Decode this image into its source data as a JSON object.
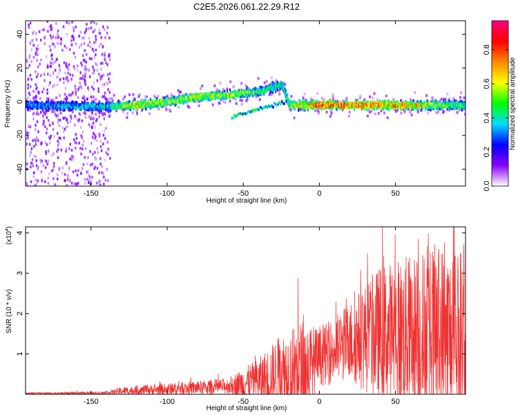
{
  "title": "C2E5.2026.061.22.29.R12",
  "chart_data": [
    {
      "type": "heatmap",
      "panel": "top",
      "xlabel": "Height of straight line (km)",
      "ylabel": "Frequency (Hz)",
      "xlim": [
        -193,
        96
      ],
      "ylim": [
        -50,
        48
      ],
      "xticks": [
        -150,
        -100,
        -50,
        0,
        50
      ],
      "yticks": [
        -40,
        -20,
        0,
        20,
        40
      ],
      "colorbar": {
        "label": "Normalized spectral amplitude",
        "range": [
          0,
          0.97
        ],
        "ticks": [
          "0.0",
          "0.2",
          "0.4",
          "0.6",
          "0.8"
        ],
        "colors": [
          "#ffffff",
          "#8800ff",
          "#0000ff",
          "#00ddff",
          "#00ff00",
          "#ffff00",
          "#ff8800",
          "#ff0000",
          "#ff0080"
        ]
      },
      "ridge": [
        {
          "x": -193,
          "f": -2,
          "amp": 0.35
        },
        {
          "x": -140,
          "f": -3,
          "amp": 0.45
        },
        {
          "x": -120,
          "f": -2,
          "amp": 0.7
        },
        {
          "x": -100,
          "f": 0,
          "amp": 0.6
        },
        {
          "x": -80,
          "f": 3,
          "amp": 0.65
        },
        {
          "x": -60,
          "f": 4,
          "amp": 0.6
        },
        {
          "x": -40,
          "f": 6,
          "amp": 0.55
        },
        {
          "x": -25,
          "f": 10,
          "amp": 0.45
        },
        {
          "x": -20,
          "f": -2,
          "amp": 0.6
        },
        {
          "x": 0,
          "f": -2,
          "amp": 0.9
        },
        {
          "x": 20,
          "f": -2,
          "amp": 0.85
        },
        {
          "x": 50,
          "f": -2,
          "amp": 0.8
        },
        {
          "x": 96,
          "f": -2,
          "amp": 0.5
        }
      ]
    },
    {
      "type": "line",
      "panel": "bottom",
      "xlabel": "Height of straight line (km)",
      "ylabel": "SNR (10 * v/v)",
      "multiplier": "(x10",
      "multiplier_exp": "4",
      "multiplier_close": ")",
      "xlim": [
        -193,
        96
      ],
      "ylim": [
        0,
        4.15
      ],
      "xticks": [
        -150,
        -100,
        -50,
        0,
        50
      ],
      "yticks": [
        1,
        2,
        3,
        4
      ],
      "color": "#ee3333",
      "envelope": [
        {
          "x": -193,
          "base": 0.02,
          "amp": 0.02
        },
        {
          "x": -140,
          "base": 0.03,
          "amp": 0.04
        },
        {
          "x": -130,
          "base": 0.08,
          "amp": 0.1
        },
        {
          "x": -100,
          "base": 0.12,
          "amp": 0.15
        },
        {
          "x": -60,
          "base": 0.2,
          "amp": 0.2
        },
        {
          "x": -40,
          "base": 0.35,
          "amp": 0.55
        },
        {
          "x": -25,
          "base": 0.5,
          "amp": 1.0
        },
        {
          "x": -10,
          "base": 0.6,
          "amp": 1.3
        },
        {
          "x": 0,
          "base": 0.9,
          "amp": 0.7
        },
        {
          "x": 20,
          "base": 1.3,
          "amp": 1.0
        },
        {
          "x": 40,
          "base": 1.5,
          "amp": 1.7
        },
        {
          "x": 60,
          "base": 1.5,
          "amp": 2.0
        },
        {
          "x": 80,
          "base": 1.4,
          "amp": 2.4
        },
        {
          "x": 96,
          "base": 1.3,
          "amp": 2.2
        }
      ],
      "spikes": [
        {
          "x": -14,
          "y": 2.88
        },
        {
          "x": 65,
          "y": 3.85
        },
        {
          "x": 88,
          "y": 4.15
        },
        {
          "x": 93,
          "y": 3.5
        }
      ]
    }
  ]
}
